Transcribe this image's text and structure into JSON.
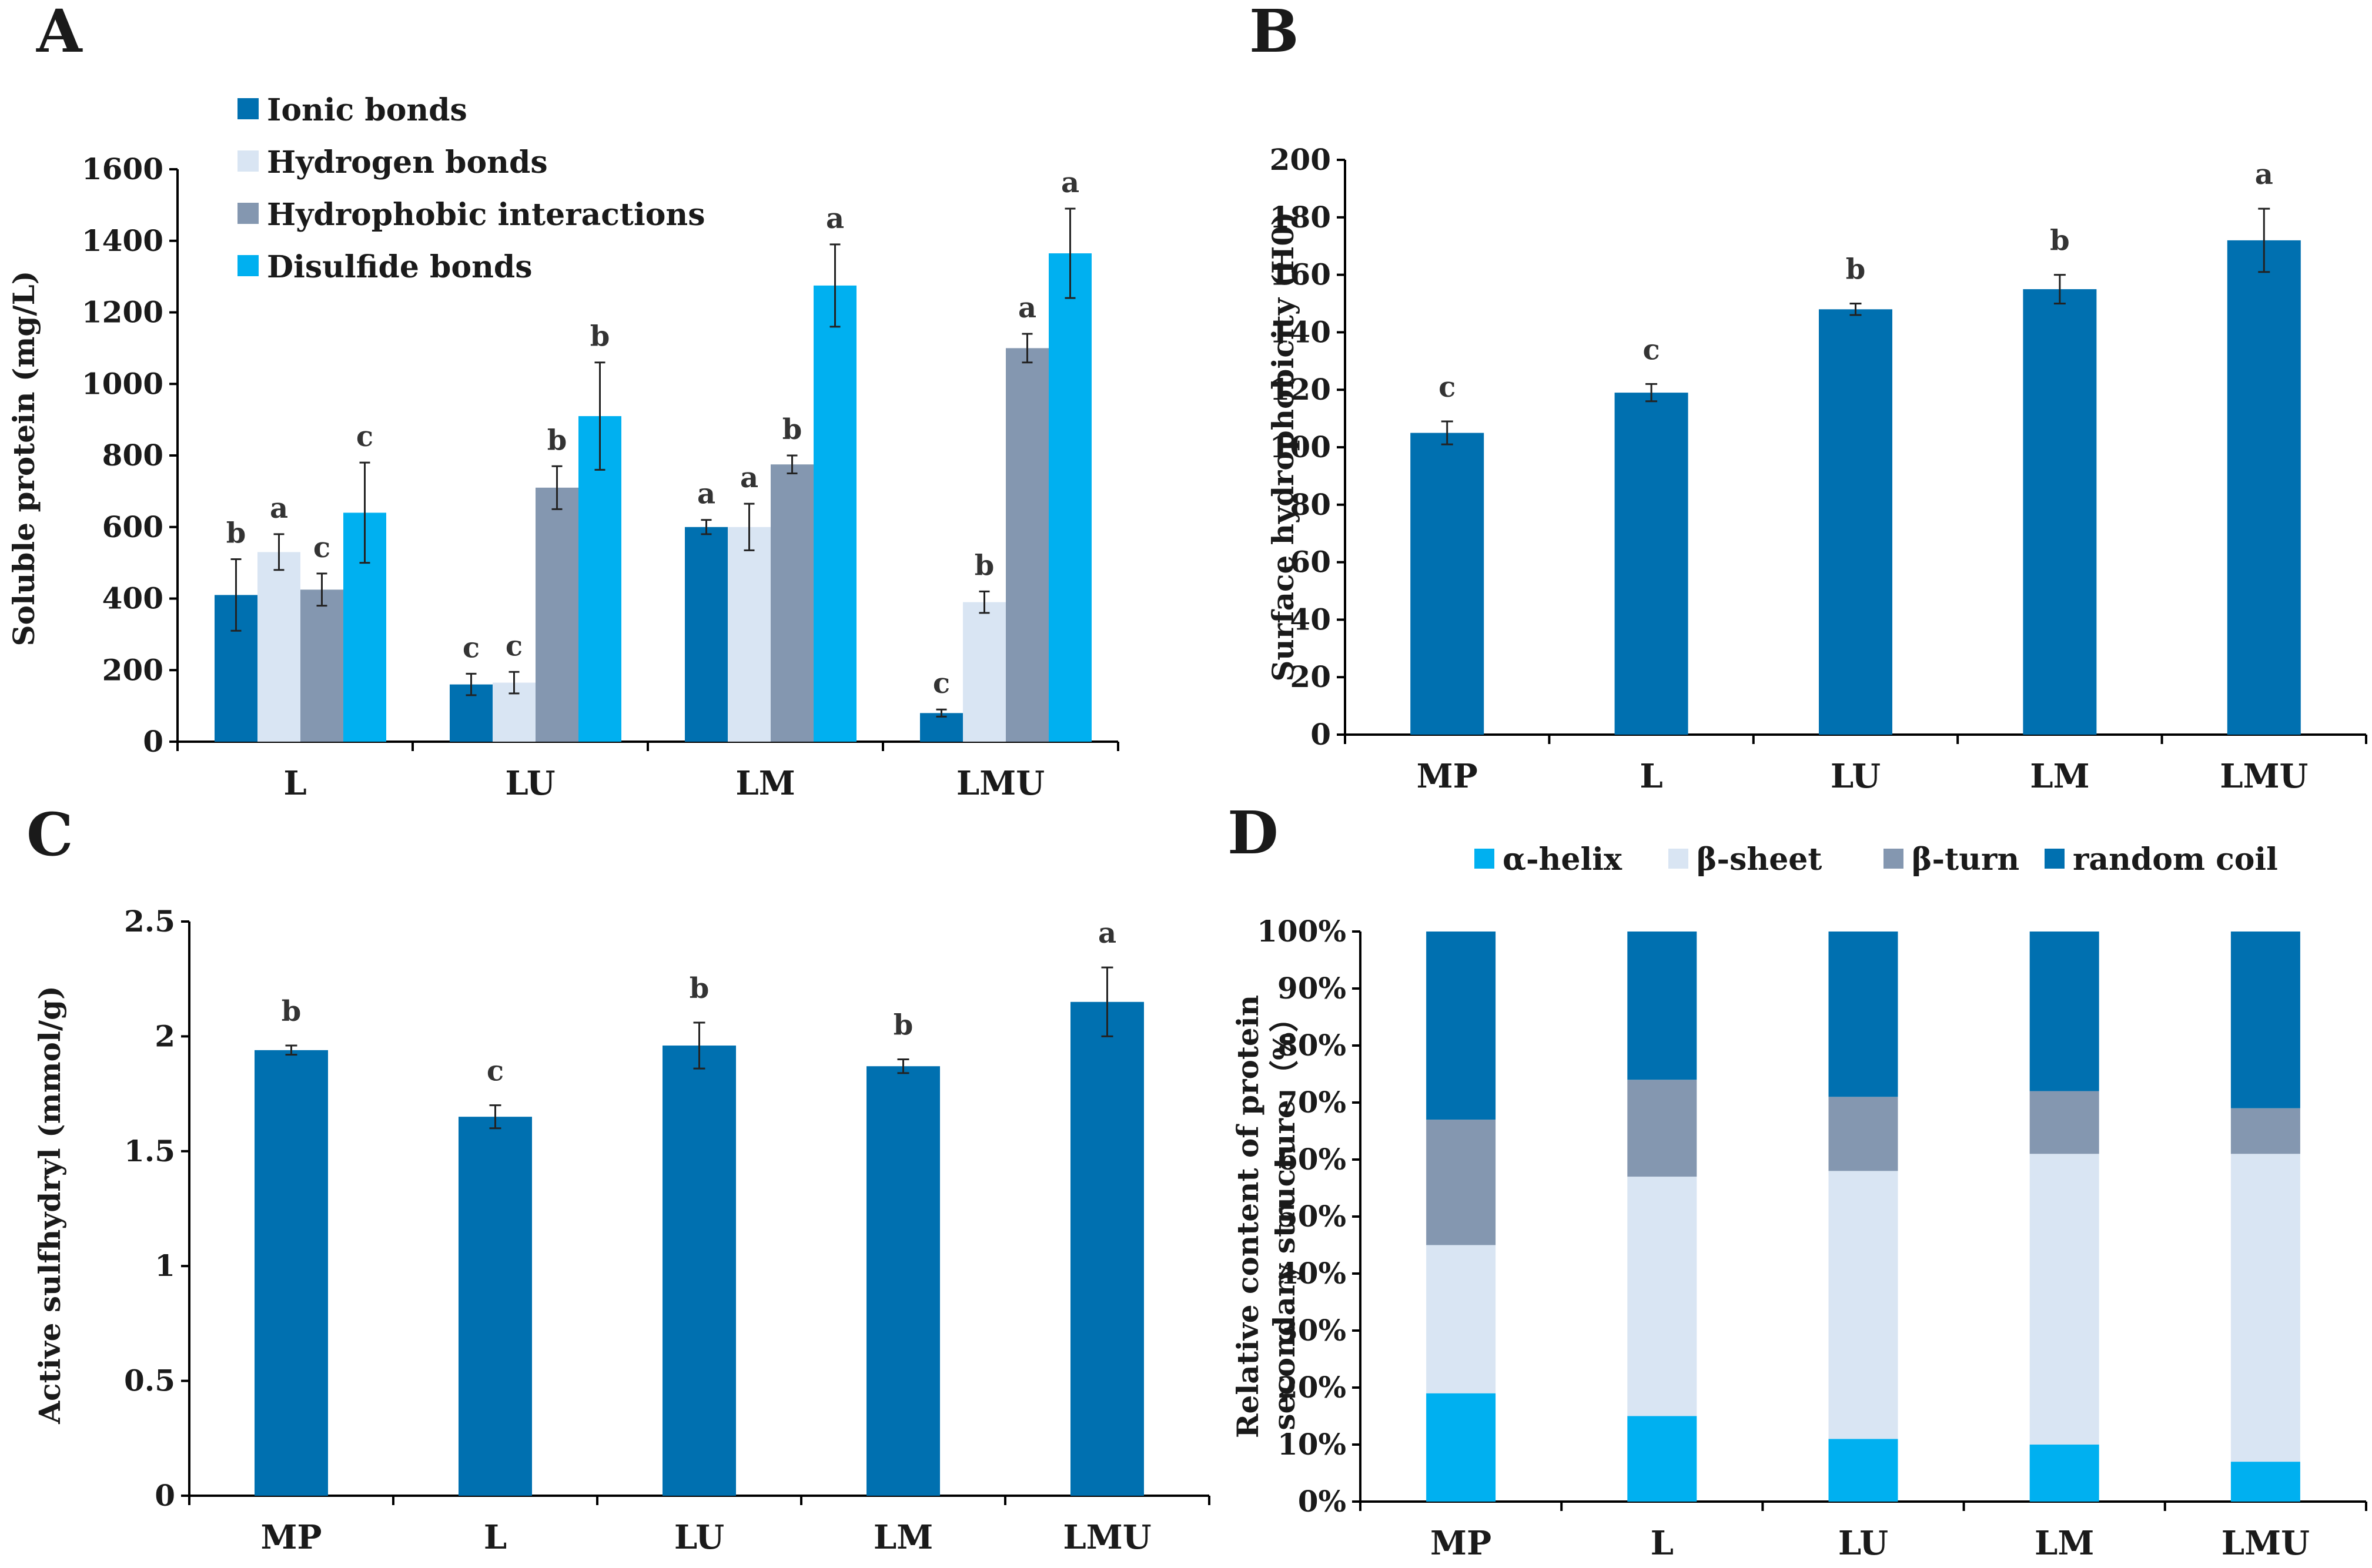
{
  "chart_data": [
    {
      "panel": "A",
      "type": "bar",
      "title": "",
      "xlabel": "",
      "ylabel": "Soluble protein (mg/L)",
      "ylim": [
        0,
        1600
      ],
      "yticks": [
        0,
        200,
        400,
        600,
        800,
        1000,
        1200,
        1400,
        1600
      ],
      "categories": [
        "L",
        "LU",
        "LM",
        "LMU"
      ],
      "legend": "top-left",
      "series": [
        {
          "name": "Ionic bonds",
          "color": "#0070B0",
          "values": [
            410,
            160,
            600,
            80
          ],
          "errors": [
            100,
            30,
            20,
            10
          ],
          "letters": [
            "b",
            "c",
            "a",
            "c"
          ]
        },
        {
          "name": "Hydrogen bonds",
          "color": "#D9E5F3",
          "values": [
            530,
            165,
            600,
            390
          ],
          "errors": [
            50,
            30,
            65,
            30
          ],
          "letters": [
            "a",
            "c",
            "a",
            "b"
          ]
        },
        {
          "name": "Hydrophobic interactions",
          "color": "#8497B0",
          "values": [
            425,
            710,
            775,
            1100
          ],
          "errors": [
            45,
            60,
            25,
            40
          ],
          "letters": [
            "c",
            "b",
            "b",
            "a"
          ]
        },
        {
          "name": "Disulfide bonds",
          "color": "#00B0F0",
          "values": [
            640,
            910,
            1275,
            1365
          ],
          "errors": [
            140,
            150,
            115,
            125
          ],
          "letters": [
            "c",
            "b",
            "a",
            "a"
          ]
        }
      ]
    },
    {
      "panel": "B",
      "type": "bar",
      "title": "",
      "xlabel": "",
      "ylabel": "Surface hydrophobicity (H0)",
      "ylim": [
        0,
        200
      ],
      "yticks": [
        0,
        20,
        40,
        60,
        80,
        100,
        120,
        140,
        160,
        180,
        200
      ],
      "categories": [
        "MP",
        "L",
        "LU",
        "LM",
        "LMU"
      ],
      "series": [
        {
          "name": "H0",
          "color": "#0070B0",
          "values": [
            105,
            119,
            148,
            155,
            172
          ],
          "errors": [
            4,
            3,
            2,
            5,
            11
          ],
          "letters": [
            "c",
            "c",
            "b",
            "b",
            "a"
          ]
        }
      ]
    },
    {
      "panel": "C",
      "type": "bar",
      "title": "",
      "xlabel": "",
      "ylabel": "Active sulfhydryl (mmol/g)",
      "ylim": [
        0,
        2.5
      ],
      "yticks": [
        "0",
        "0.5",
        "1",
        "1.5",
        "2",
        "2.5"
      ],
      "categories": [
        "MP",
        "L",
        "LU",
        "LM",
        "LMU"
      ],
      "series": [
        {
          "name": "Active sulfhydryl",
          "color": "#0070B0",
          "values": [
            1.94,
            1.65,
            1.96,
            1.87,
            2.15
          ],
          "errors": [
            0.02,
            0.05,
            0.1,
            0.03,
            0.15
          ],
          "letters": [
            "b",
            "c",
            "b",
            "b",
            "a"
          ]
        }
      ]
    },
    {
      "panel": "D",
      "type": "bar",
      "stacked": true,
      "title": "",
      "xlabel": "",
      "ylabel": [
        "Relative content of protein",
        "secondary structure （%）"
      ],
      "ylim": [
        0,
        100
      ],
      "yticks": [
        "0%",
        "10%",
        "20%",
        "30%",
        "40%",
        "50%",
        "60%",
        "70%",
        "80%",
        "90%",
        "100%"
      ],
      "categories": [
        "MP",
        "L",
        "LU",
        "LM",
        "LMU"
      ],
      "legend": "top",
      "series": [
        {
          "name": "α-helix",
          "color": "#00B0F0",
          "values": [
            19,
            15,
            11,
            10,
            7
          ]
        },
        {
          "name": "β-sheet",
          "color": "#D9E5F3",
          "values": [
            26,
            42,
            47,
            51,
            54
          ]
        },
        {
          "name": "β-turn",
          "color": "#8497B0",
          "values": [
            22,
            17,
            13,
            11,
            8
          ]
        },
        {
          "name": "random coil",
          "color": "#0070B0",
          "values": [
            33,
            26,
            29,
            28,
            31
          ]
        }
      ]
    }
  ]
}
